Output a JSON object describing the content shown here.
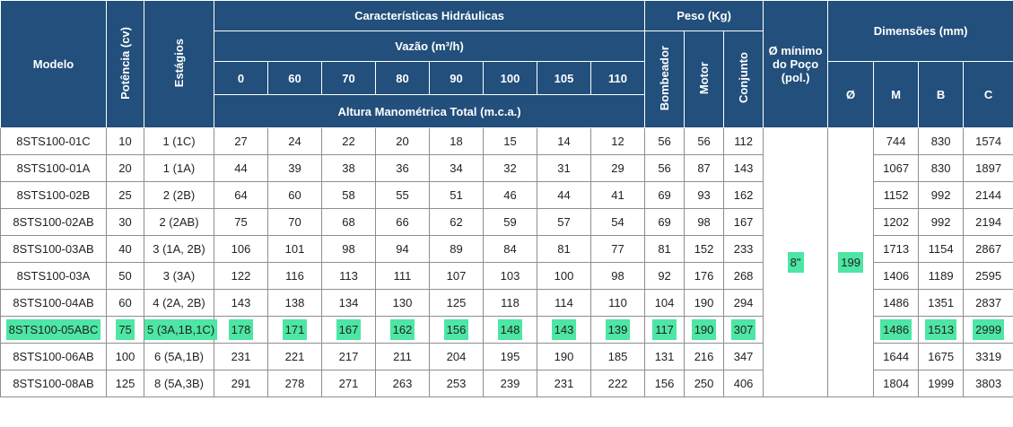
{
  "header": {
    "modelo": "Modelo",
    "potencia": "Potência (cv)",
    "estagios": "Estágios",
    "hidraulicas": "Características Hidráulicas",
    "vazao": "Vazão (m³/h)",
    "vazao_values": [
      "0",
      "60",
      "70",
      "80",
      "90",
      "100",
      "105",
      "110"
    ],
    "altura": "Altura Manométrica Total (m.c.a.)",
    "peso": "Peso (Kg)",
    "peso_cols": [
      "Bombeador",
      "Motor",
      "Conjunto"
    ],
    "diametro_minimo": "Ø mínimo do Poço (pol.)",
    "dimensoes": "Dimensões (mm)",
    "dim_cols": [
      "Ø",
      "M",
      "B",
      "C"
    ]
  },
  "shared": {
    "diametro_poco": "8\"",
    "diametro": "199"
  },
  "highlight_color": "#4de6a4",
  "header_color": "#224f7b",
  "rows": [
    {
      "modelo": "8STS100-01C",
      "potencia": "10",
      "estagios": "1 (1C)",
      "h": [
        "27",
        "24",
        "22",
        "20",
        "18",
        "15",
        "14",
        "12"
      ],
      "bomb": "56",
      "motor": "56",
      "conj": "112",
      "m": "744",
      "b": "830",
      "c": "1574"
    },
    {
      "modelo": "8STS100-01A",
      "potencia": "20",
      "estagios": "1 (1A)",
      "h": [
        "44",
        "39",
        "38",
        "36",
        "34",
        "32",
        "31",
        "29"
      ],
      "bomb": "56",
      "motor": "87",
      "conj": "143",
      "m": "1067",
      "b": "830",
      "c": "1897"
    },
    {
      "modelo": "8STS100-02B",
      "potencia": "25",
      "estagios": "2 (2B)",
      "h": [
        "64",
        "60",
        "58",
        "55",
        "51",
        "46",
        "44",
        "41"
      ],
      "bomb": "69",
      "motor": "93",
      "conj": "162",
      "m": "1152",
      "b": "992",
      "c": "2144"
    },
    {
      "modelo": "8STS100-02AB",
      "potencia": "30",
      "estagios": "2 (2AB)",
      "h": [
        "75",
        "70",
        "68",
        "66",
        "62",
        "59",
        "57",
        "54"
      ],
      "bomb": "69",
      "motor": "98",
      "conj": "167",
      "m": "1202",
      "b": "992",
      "c": "2194"
    },
    {
      "modelo": "8STS100-03AB",
      "potencia": "40",
      "estagios": "3 (1A, 2B)",
      "h": [
        "106",
        "101",
        "98",
        "94",
        "89",
        "84",
        "81",
        "77"
      ],
      "bomb": "81",
      "motor": "152",
      "conj": "233",
      "m": "1713",
      "b": "1154",
      "c": "2867"
    },
    {
      "modelo": "8STS100-03A",
      "potencia": "50",
      "estagios": "3 (3A)",
      "h": [
        "122",
        "116",
        "113",
        "111",
        "107",
        "103",
        "100",
        "98"
      ],
      "bomb": "92",
      "motor": "176",
      "conj": "268",
      "m": "1406",
      "b": "1189",
      "c": "2595"
    },
    {
      "modelo": "8STS100-04AB",
      "potencia": "60",
      "estagios": "4 (2A, 2B)",
      "h": [
        "143",
        "138",
        "134",
        "130",
        "125",
        "118",
        "114",
        "110"
      ],
      "bomb": "104",
      "motor": "190",
      "conj": "294",
      "m": "1486",
      "b": "1351",
      "c": "2837"
    },
    {
      "modelo": "8STS100-05ABC",
      "potencia": "75",
      "estagios": "5 (3A,1B,1C)",
      "h": [
        "178",
        "171",
        "167",
        "162",
        "156",
        "148",
        "143",
        "139"
      ],
      "bomb": "117",
      "motor": "190",
      "conj": "307",
      "m": "1486",
      "b": "1513",
      "c": "2999",
      "highlight": true
    },
    {
      "modelo": "8STS100-06AB",
      "potencia": "100",
      "estagios": "6 (5A,1B)",
      "h": [
        "231",
        "221",
        "217",
        "211",
        "204",
        "195",
        "190",
        "185"
      ],
      "bomb": "131",
      "motor": "216",
      "conj": "347",
      "m": "1644",
      "b": "1675",
      "c": "3319"
    },
    {
      "modelo": "8STS100-08AB",
      "potencia": "125",
      "estagios": "8 (5A,3B)",
      "h": [
        "291",
        "278",
        "271",
        "263",
        "253",
        "239",
        "231",
        "222"
      ],
      "bomb": "156",
      "motor": "250",
      "conj": "406",
      "m": "1804",
      "b": "1999",
      "c": "3803"
    }
  ]
}
